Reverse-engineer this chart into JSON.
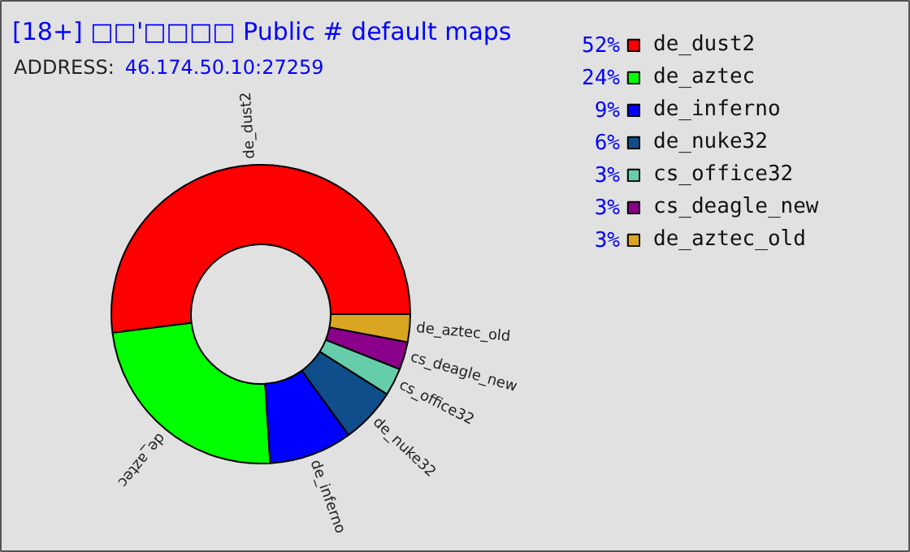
{
  "chart_data": {
    "type": "donut",
    "title": "[18+] □□'□□□□ Public # default maps",
    "subtitle": "ADDRESS: 46.174.50.10:27259",
    "categories": [
      "de_dust2",
      "de_aztec",
      "de_inferno",
      "de_nuke32",
      "cs_office32",
      "cs_deagle_new",
      "de_aztec_old"
    ],
    "values": [
      52,
      24,
      9,
      6,
      3,
      3,
      3
    ],
    "value_labels": [
      "52%",
      "24%",
      "9%",
      "6%",
      "3%",
      "3%",
      "3%"
    ],
    "colors": [
      "#ff0000",
      "#00ff00",
      "#0000ff",
      "#104e8b",
      "#66cdaa",
      "#8b008b",
      "#daa520"
    ],
    "legend": "right"
  }
}
